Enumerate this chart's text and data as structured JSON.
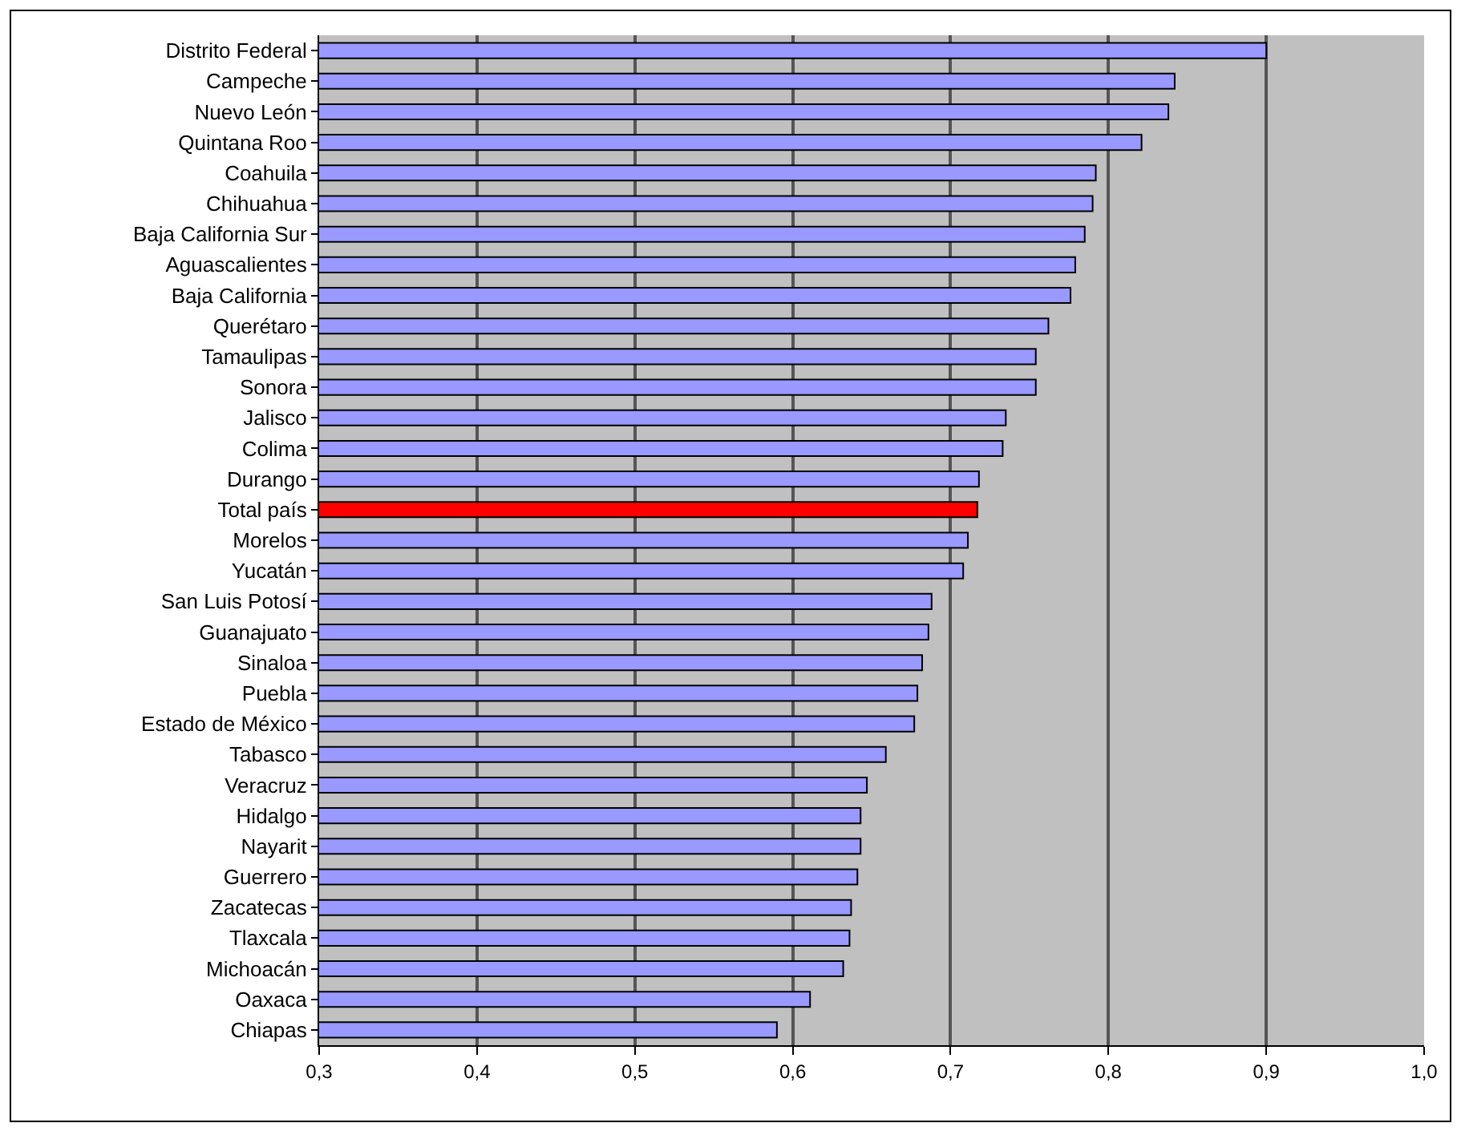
{
  "chart_data": {
    "type": "bar",
    "orientation": "horizontal",
    "categories": [
      "Distrito Federal",
      "Campeche",
      "Nuevo León",
      "Quintana Roo",
      "Coahuila",
      "Chihuahua",
      "Baja California Sur",
      "Aguascalientes",
      "Baja California",
      "Querétaro",
      "Tamaulipas",
      "Sonora",
      "Jalisco",
      "Colima",
      "Durango",
      "Total país",
      "Morelos",
      "Yucatán",
      "San Luis Potosí",
      "Guanajuato",
      "Sinaloa",
      "Puebla",
      "Estado de México",
      "Tabasco",
      "Veracruz",
      "Hidalgo",
      "Nayarit",
      "Guerrero",
      "Zacatecas",
      "Tlaxcala",
      "Michoacán",
      "Oaxaca",
      "Chiapas"
    ],
    "values": [
      0.9,
      0.842,
      0.838,
      0.821,
      0.792,
      0.79,
      0.785,
      0.779,
      0.776,
      0.762,
      0.754,
      0.754,
      0.735,
      0.733,
      0.718,
      0.717,
      0.711,
      0.708,
      0.688,
      0.686,
      0.682,
      0.679,
      0.677,
      0.659,
      0.647,
      0.643,
      0.643,
      0.641,
      0.637,
      0.636,
      0.632,
      0.611,
      0.59
    ],
    "colors": [
      "#9999ff",
      "#9999ff",
      "#9999ff",
      "#9999ff",
      "#9999ff",
      "#9999ff",
      "#9999ff",
      "#9999ff",
      "#9999ff",
      "#9999ff",
      "#9999ff",
      "#9999ff",
      "#9999ff",
      "#9999ff",
      "#9999ff",
      "#ff0000",
      "#9999ff",
      "#9999ff",
      "#9999ff",
      "#9999ff",
      "#9999ff",
      "#9999ff",
      "#9999ff",
      "#9999ff",
      "#9999ff",
      "#9999ff",
      "#9999ff",
      "#9999ff",
      "#9999ff",
      "#9999ff",
      "#9999ff",
      "#9999ff",
      "#9999ff"
    ],
    "xlim": [
      0.3,
      1.0
    ],
    "xticks": [
      {
        "value": 0.3,
        "label": "0,3"
      },
      {
        "value": 0.4,
        "label": "0,4"
      },
      {
        "value": 0.5,
        "label": "0,5"
      },
      {
        "value": 0.6,
        "label": "0,6"
      },
      {
        "value": 0.7,
        "label": "0,7"
      },
      {
        "value": 0.8,
        "label": "0,8"
      },
      {
        "value": 0.9,
        "label": "0,9"
      },
      {
        "value": 1.0,
        "label": "1,0"
      }
    ],
    "grid": "x"
  }
}
